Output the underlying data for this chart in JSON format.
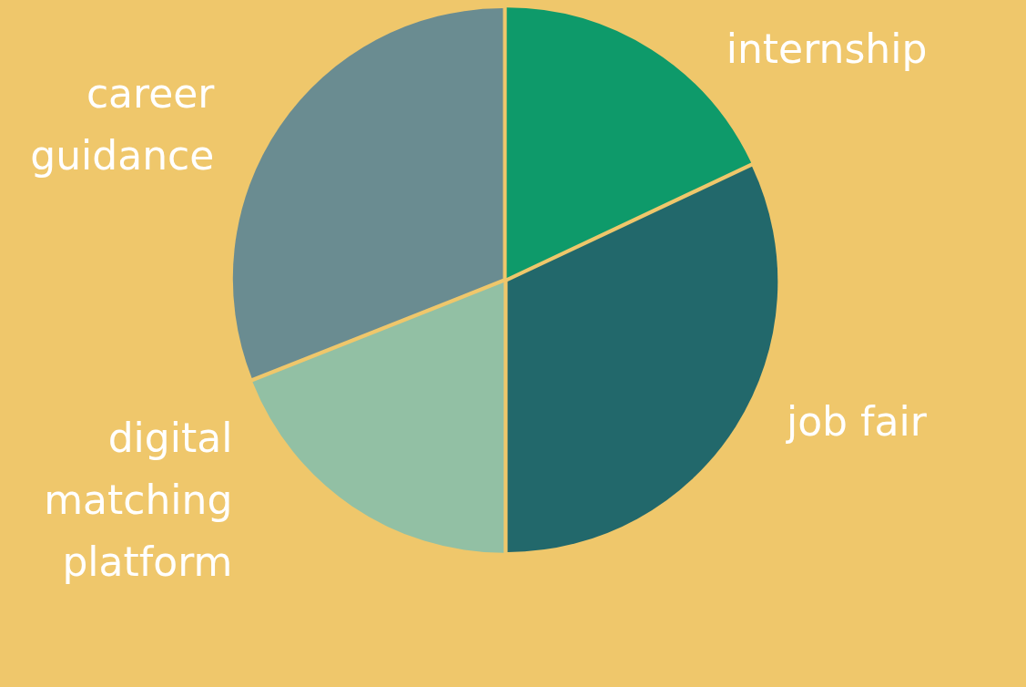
{
  "chart_data": {
    "type": "pie",
    "categories": [
      "internship",
      "job fair",
      "digital matching platform",
      "career guidance"
    ],
    "values": [
      18,
      32,
      19,
      31
    ],
    "colors": [
      "#0e9a6a",
      "#22686b",
      "#92c0a4",
      "#6a8c91"
    ]
  }
}
